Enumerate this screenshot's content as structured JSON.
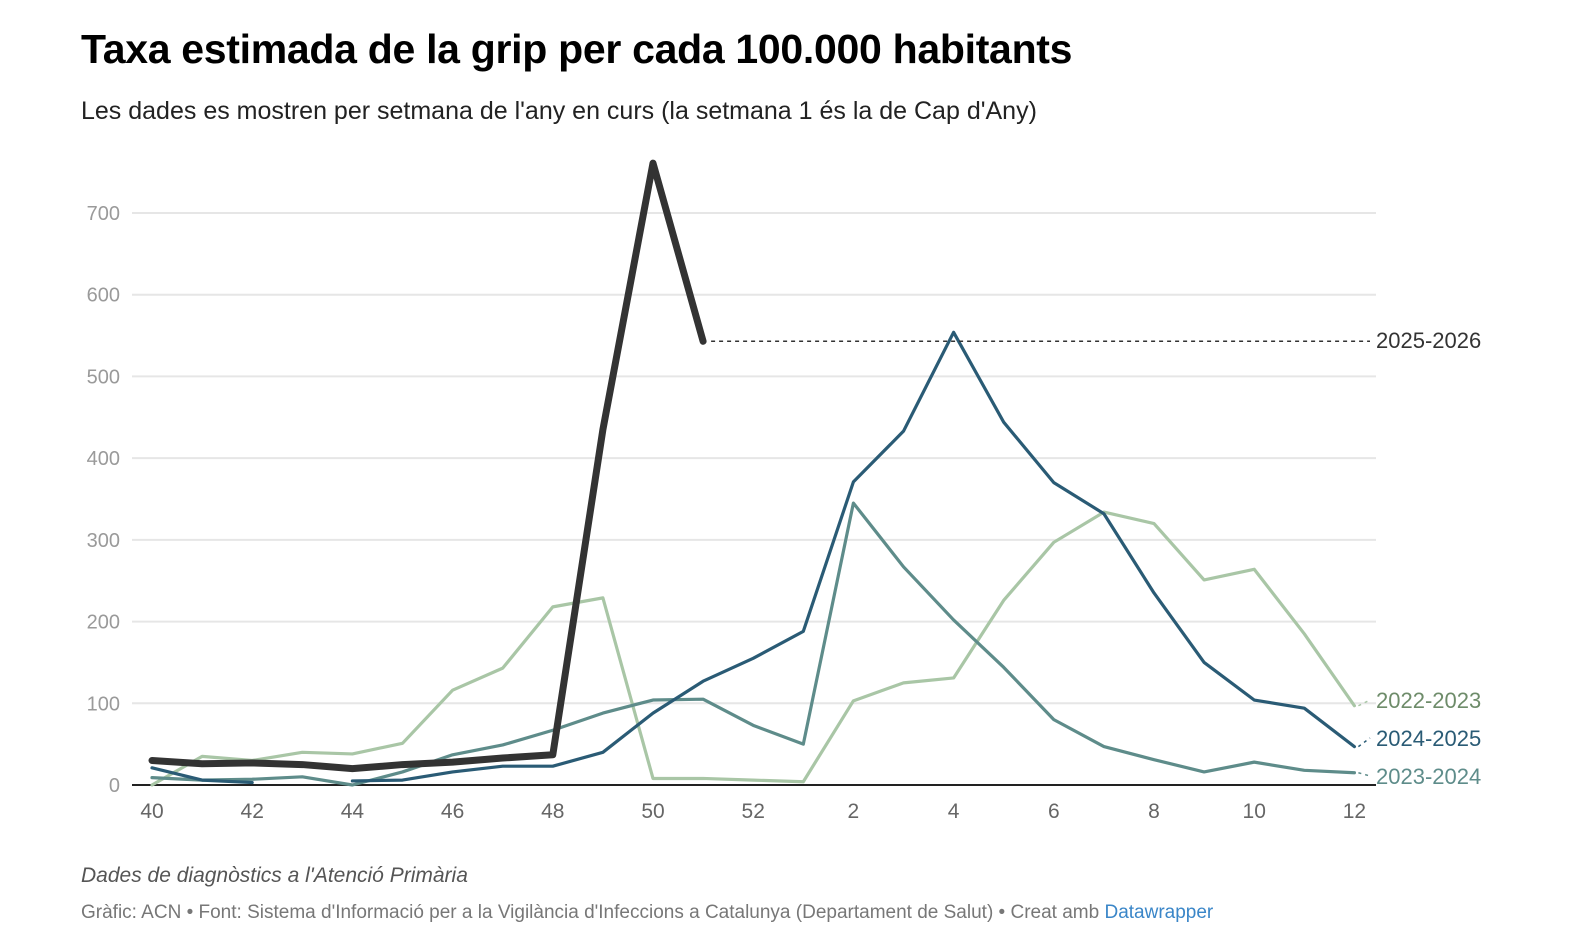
{
  "header": {
    "title": "Taxa estimada de la grip per cada 100.000 habitants",
    "subtitle": "Les dades es mostren per setmana de l'any en curs (la setmana 1 és la de Cap d'Any)"
  },
  "footer": {
    "notes": "Dades de diagnòstics a l'Atenció Primària",
    "source_prefix": "Gràfic: ACN • Font: Sistema d'Informació per a la Vigilància d'Infeccions a Catalunya (Departament de Salut) • Creat amb ",
    "source_link": "Datawrapper",
    "link_color": "#3a86c8"
  },
  "chart_data": {
    "type": "line",
    "title": "Taxa estimada de la grip per cada 100.000 habitants",
    "xlabel": "",
    "ylabel": "",
    "x": [
      40,
      41,
      42,
      43,
      44,
      45,
      46,
      47,
      48,
      49,
      50,
      51,
      52,
      1,
      2,
      3,
      4,
      5,
      6,
      7,
      8,
      9,
      10,
      11,
      12
    ],
    "x_tick_labels": [
      "40",
      "42",
      "44",
      "46",
      "48",
      "50",
      "52",
      "2",
      "4",
      "6",
      "8",
      "10",
      "12"
    ],
    "x_tick_indices": [
      0,
      2,
      4,
      6,
      8,
      10,
      12,
      14,
      16,
      18,
      20,
      22,
      24
    ],
    "y_ticks": [
      0,
      100,
      200,
      300,
      400,
      500,
      600,
      700
    ],
    "ylim": [
      0,
      760
    ],
    "grid": true,
    "legend": "direct labels right",
    "series": [
      {
        "name": "2022-2023",
        "color": "#a9c6a6",
        "label_color": "#6e8c6a",
        "values": [
          0,
          35,
          30,
          40,
          38,
          51,
          116,
          143,
          218,
          229,
          8,
          8,
          6,
          4,
          103,
          125,
          131,
          226,
          297,
          334,
          320,
          251,
          264,
          185,
          97
        ]
      },
      {
        "name": "2023-2024",
        "color": "#5e8c8a",
        "label_color": "#5e8c8a",
        "values": [
          9,
          6,
          7,
          10,
          0,
          16,
          37,
          49,
          67,
          88,
          104,
          105,
          73,
          50,
          345,
          267,
          202,
          144,
          80,
          47,
          31,
          16,
          28,
          18,
          15
        ]
      },
      {
        "name": "2024-2025",
        "color": "#2a5b75",
        "label_color": "#2a5b75",
        "values": [
          21,
          6,
          3,
          null,
          5,
          6,
          16,
          23,
          23,
          40,
          88,
          127,
          155,
          188,
          371,
          433,
          554,
          444,
          370,
          332,
          235,
          150,
          104,
          94,
          47
        ]
      },
      {
        "name": "2025-2026",
        "color": "#333333",
        "label_color": "#333333",
        "emphasis": true,
        "values": [
          30,
          26,
          27,
          25,
          20,
          25,
          28,
          33,
          37,
          435,
          761,
          543,
          null,
          null,
          null,
          null,
          null,
          null,
          null,
          null,
          null,
          null,
          null,
          null,
          null
        ]
      }
    ],
    "annotations": [
      {
        "type": "dotted-leader",
        "series": "2025-2026",
        "text": "2025-2026"
      }
    ]
  }
}
